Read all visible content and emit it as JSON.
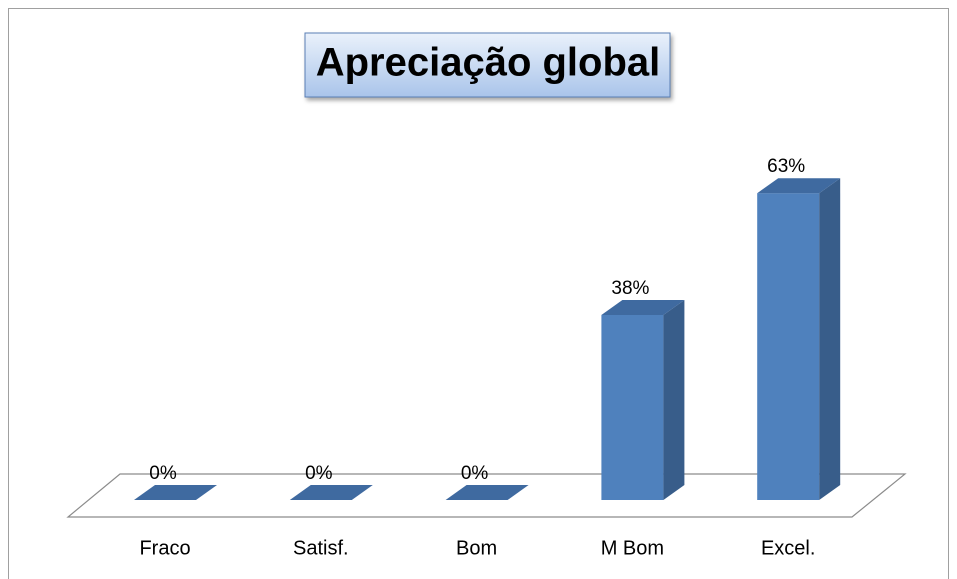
{
  "chart_data": {
    "type": "bar3d",
    "title": "Apreciação global",
    "categories": [
      "Fraco",
      "Satisf.",
      "Bom",
      "M Bom",
      "Excel."
    ],
    "values": [
      0,
      0,
      0,
      38,
      63
    ],
    "value_labels": [
      "0%",
      "0%",
      "0%",
      "38%",
      "63%"
    ],
    "color": "#4f81bd"
  }
}
